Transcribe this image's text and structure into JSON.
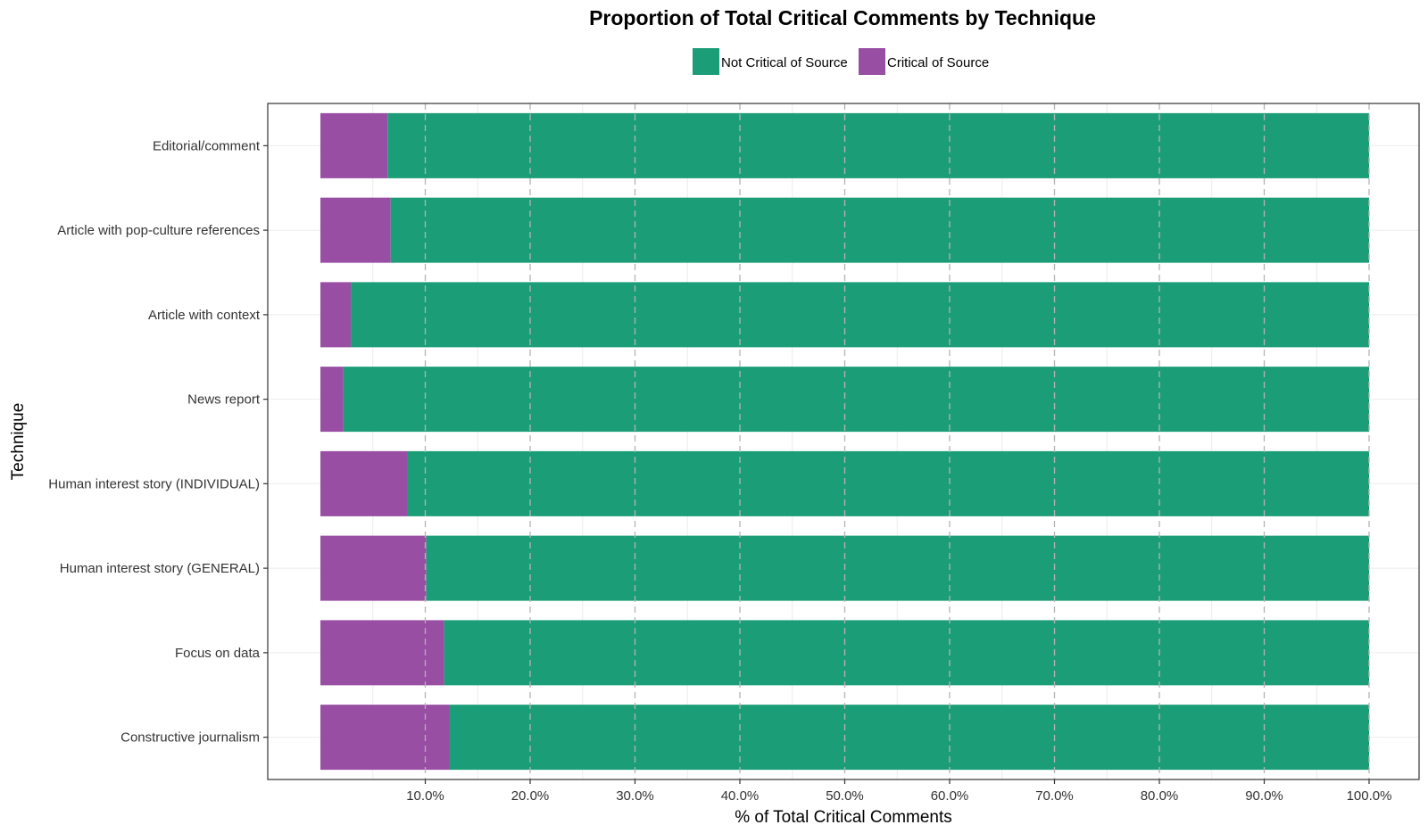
{
  "chart_data": {
    "type": "bar",
    "orientation": "horizontal",
    "stacked": true,
    "title": "Proportion of Total Critical Comments by Technique",
    "xlabel": "% of Total Critical Comments",
    "ylabel": "Technique",
    "xlim": [
      0,
      100
    ],
    "x_ticks": [
      "10.0%",
      "20.0%",
      "30.0%",
      "40.0%",
      "50.0%",
      "60.0%",
      "70.0%",
      "80.0%",
      "90.0%",
      "100.0%"
    ],
    "grid": true,
    "legend_position": "top",
    "categories": [
      "Editorial/comment",
      "Article with pop-culture references",
      "Article with context",
      "News report",
      "Human interest story (INDIVIDUAL)",
      "Human interest story (GENERAL)",
      "Focus on data",
      "Constructive journalism"
    ],
    "series": [
      {
        "name": "Critical of Source",
        "color": "#984ea3",
        "values": [
          6.4,
          6.7,
          2.9,
          2.2,
          8.3,
          10.1,
          11.8,
          12.3
        ]
      },
      {
        "name": "Not Critical of Source",
        "color": "#1b9e77",
        "values": [
          93.6,
          93.3,
          97.1,
          97.8,
          91.7,
          89.9,
          88.2,
          87.7
        ]
      }
    ],
    "legend": [
      {
        "name": "Not Critical of Source",
        "color": "#1b9e77"
      },
      {
        "name": "Critical of Source",
        "color": "#984ea3"
      }
    ]
  }
}
